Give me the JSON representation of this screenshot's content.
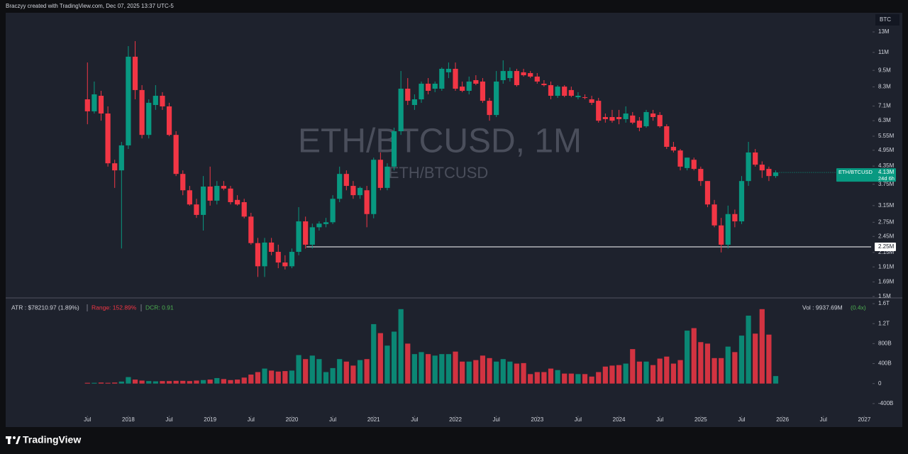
{
  "header": {
    "attribution": "Braczyy created with TradingView.com, Dec 07, 2025 13:37 UTC-5"
  },
  "chart_data": {
    "type": "candlestick",
    "watermark_title": "ETH/BTCUSD, 1M",
    "watermark_symbol": "ETH/BTCUSD",
    "currency": "BTC",
    "log_scale": true,
    "up_color": "#089981",
    "down_color": "#f23645",
    "x": [
      "2017-07",
      "2017-08",
      "2017-09",
      "2017-10",
      "2017-11",
      "2017-12",
      "2018-01",
      "2018-02",
      "2018-03",
      "2018-04",
      "2018-05",
      "2018-06",
      "2018-07",
      "2018-08",
      "2018-09",
      "2018-10",
      "2018-11",
      "2018-12",
      "2019-01",
      "2019-02",
      "2019-03",
      "2019-04",
      "2019-05",
      "2019-06",
      "2019-07",
      "2019-08",
      "2019-09",
      "2019-10",
      "2019-11",
      "2019-12",
      "2020-01",
      "2020-02",
      "2020-03",
      "2020-04",
      "2020-05",
      "2020-06",
      "2020-07",
      "2020-08",
      "2020-09",
      "2020-10",
      "2020-11",
      "2020-12",
      "2021-01",
      "2021-02",
      "2021-03",
      "2021-04",
      "2021-05",
      "2021-06",
      "2021-07",
      "2021-08",
      "2021-09",
      "2021-10",
      "2021-11",
      "2021-12",
      "2022-01",
      "2022-02",
      "2022-03",
      "2022-04",
      "2022-05",
      "2022-06",
      "2022-07",
      "2022-08",
      "2022-09",
      "2022-10",
      "2022-11",
      "2022-12",
      "2023-01",
      "2023-02",
      "2023-03",
      "2023-04",
      "2023-05",
      "2023-06",
      "2023-07",
      "2023-08",
      "2023-09",
      "2023-10",
      "2023-11",
      "2023-12",
      "2024-01",
      "2024-02",
      "2024-03",
      "2024-04",
      "2024-05",
      "2024-06",
      "2024-07",
      "2024-08",
      "2024-09",
      "2024-10",
      "2024-11",
      "2024-12",
      "2025-01",
      "2025-02",
      "2025-03",
      "2025-04",
      "2025-05",
      "2025-06",
      "2025-07",
      "2025-08",
      "2025-09",
      "2025-10",
      "2025-11",
      "2025-12"
    ],
    "open": [
      7.5,
      6.8,
      7.72,
      6.68,
      4.45,
      4.2,
      5.15,
      10.62,
      8.09,
      5.61,
      7.16,
      7.72,
      7.08,
      5.61,
      4.08,
      3.57,
      3.18,
      2.92,
      3.68,
      3.28,
      3.7,
      3.62,
      3.3,
      3.24,
      2.88,
      2.32,
      1.92,
      2.33,
      2.16,
      1.98,
      1.92,
      2.16,
      2.77,
      2.29,
      2.64,
      2.71,
      2.75,
      3.33,
      4.08,
      3.7,
      3.43,
      3.57,
      2.94,
      4.58,
      3.64,
      4.33,
      5.78,
      8.18,
      7.16,
      7.5,
      8.52,
      8.18,
      8.18,
      9.35,
      9.62,
      8.32,
      8.04,
      8.77,
      8.67,
      7.41,
      6.6,
      8.77,
      8.92,
      9.45,
      9.35,
      9.29,
      9.03,
      8.52,
      8.42,
      7.72,
      8.32,
      8.09,
      7.63,
      7.63,
      7.5,
      7.41,
      6.49,
      6.49,
      6.49,
      6.38,
      6.57,
      6.3,
      6.02,
      6.68,
      6.6,
      6.02,
      5.09,
      4.94,
      4.28,
      4.58,
      4.25,
      3.85,
      3.18,
      2.68,
      2.29,
      2.94,
      2.77,
      3.85,
      4.86,
      4.4,
      4.25,
      4.01
    ],
    "high": [
      10.13,
      8.67,
      8.04,
      7.08,
      4.58,
      5.3,
      11.58,
      12.06,
      8.42,
      7.5,
      8.42,
      7.95,
      7.29,
      5.78,
      4.2,
      3.7,
      3.33,
      4.01,
      4.33,
      3.85,
      3.85,
      3.7,
      3.43,
      3.33,
      2.97,
      2.42,
      2.42,
      2.42,
      2.29,
      2.1,
      2.22,
      3.11,
      2.88,
      2.72,
      2.77,
      2.85,
      3.43,
      4.33,
      4.2,
      3.85,
      3.68,
      3.7,
      4.66,
      4.86,
      4.45,
      5.95,
      9.45,
      8.92,
      7.81,
      8.67,
      8.92,
      8.67,
      9.73,
      10.13,
      10.13,
      8.67,
      9.03,
      9.13,
      8.92,
      7.59,
      9.45,
      10.31,
      9.73,
      9.62,
      9.62,
      9.45,
      9.29,
      8.77,
      8.67,
      8.42,
      8.42,
      8.32,
      7.95,
      7.81,
      7.72,
      7.59,
      6.68,
      6.88,
      6.88,
      7.08,
      6.76,
      6.49,
      6.88,
      6.88,
      6.76,
      6.12,
      5.3,
      5.0,
      4.66,
      4.66,
      4.33,
      3.85,
      3.3,
      2.85,
      3.15,
      3.05,
      4.01,
      5.3,
      5.0,
      4.52,
      4.33,
      4.2
    ],
    "low": [
      6.12,
      6.68,
      6.3,
      4.33,
      3.64,
      2.22,
      5.0,
      7.5,
      5.45,
      5.45,
      6.88,
      6.88,
      5.55,
      4.01,
      3.43,
      3.15,
      2.85,
      2.57,
      3.15,
      3.18,
      3.57,
      3.18,
      3.15,
      2.84,
      2.29,
      1.76,
      1.76,
      2.1,
      1.89,
      1.87,
      1.89,
      2.1,
      2.22,
      2.22,
      2.57,
      2.64,
      2.71,
      3.24,
      3.57,
      3.33,
      3.33,
      2.64,
      2.84,
      3.57,
      3.57,
      4.2,
      5.61,
      7.16,
      6.88,
      7.29,
      7.81,
      7.95,
      8.04,
      8.92,
      8.04,
      7.95,
      7.81,
      8.42,
      7.29,
      6.3,
      6.49,
      8.52,
      8.67,
      8.32,
      9.03,
      8.92,
      8.52,
      8.32,
      7.5,
      7.59,
      7.63,
      7.63,
      7.5,
      7.5,
      7.16,
      6.2,
      6.2,
      6.2,
      6.12,
      6.2,
      6.12,
      5.78,
      5.95,
      6.3,
      5.95,
      5.0,
      4.86,
      4.2,
      4.2,
      4.2,
      3.7,
      3.11,
      2.64,
      2.15,
      2.22,
      2.64,
      2.71,
      3.7,
      4.33,
      3.95,
      3.85,
      3.95
    ],
    "close": [
      6.8,
      7.81,
      6.68,
      4.45,
      4.2,
      5.15,
      10.62,
      8.09,
      5.61,
      7.29,
      7.72,
      7.08,
      5.61,
      4.08,
      3.57,
      3.18,
      2.92,
      3.68,
      3.28,
      3.7,
      3.62,
      3.24,
      3.18,
      2.88,
      2.32,
      1.92,
      2.33,
      2.16,
      1.98,
      1.92,
      2.16,
      2.77,
      2.29,
      2.64,
      2.72,
      2.75,
      3.33,
      4.08,
      3.7,
      3.43,
      3.64,
      2.94,
      4.58,
      3.64,
      4.33,
      5.78,
      8.18,
      7.41,
      7.5,
      8.52,
      8.04,
      8.52,
      9.62,
      9.62,
      8.18,
      8.04,
      8.67,
      8.52,
      7.41,
      6.6,
      8.67,
      9.45,
      9.45,
      8.42,
      9.13,
      9.03,
      8.67,
      8.42,
      7.72,
      8.32,
      7.72,
      7.72,
      7.72,
      7.59,
      7.29,
      6.3,
      6.38,
      6.3,
      6.38,
      6.68,
      6.2,
      5.95,
      6.76,
      6.49,
      6.02,
      5.09,
      4.94,
      4.33,
      4.66,
      4.25,
      3.85,
      3.18,
      2.68,
      2.29,
      2.94,
      2.77,
      3.85,
      4.86,
      4.4,
      4.2,
      4.01,
      4.13
    ],
    "xlim": [
      "2016-07",
      "2027-02"
    ],
    "xticks": [
      {
        "value": "2017-07",
        "label": "Jul"
      },
      {
        "value": "2018-01",
        "label": "2018"
      },
      {
        "value": "2018-07",
        "label": "Jul"
      },
      {
        "value": "2019-01",
        "label": "2019"
      },
      {
        "value": "2019-07",
        "label": "Jul"
      },
      {
        "value": "2020-01",
        "label": "2020"
      },
      {
        "value": "2020-07",
        "label": "Jul"
      },
      {
        "value": "2021-01",
        "label": "2021"
      },
      {
        "value": "2021-07",
        "label": "Jul"
      },
      {
        "value": "2022-01",
        "label": "2022"
      },
      {
        "value": "2022-07",
        "label": "Jul"
      },
      {
        "value": "2023-01",
        "label": "2023"
      },
      {
        "value": "2023-07",
        "label": "Jul"
      },
      {
        "value": "2024-01",
        "label": "2024"
      },
      {
        "value": "2024-07",
        "label": "Jul"
      },
      {
        "value": "2025-01",
        "label": "2025"
      },
      {
        "value": "2025-07",
        "label": "Jul"
      },
      {
        "value": "2026-01",
        "label": "2026"
      },
      {
        "value": "2026-07",
        "label": "Jul"
      },
      {
        "value": "2027-01",
        "label": "2027"
      }
    ],
    "ylim": [
      1.5,
      15.2
    ],
    "yticks": [
      {
        "value": 13,
        "label": "13M"
      },
      {
        "value": 11,
        "label": "11M"
      },
      {
        "value": 9.5,
        "label": "9.5M"
      },
      {
        "value": 8.3,
        "label": "8.3M"
      },
      {
        "value": 7.1,
        "label": "7.1M"
      },
      {
        "value": 6.3,
        "label": "6.3M"
      },
      {
        "value": 5.55,
        "label": "5.55M"
      },
      {
        "value": 4.95,
        "label": "4.95M"
      },
      {
        "value": 4.35,
        "label": "4.35M"
      },
      {
        "value": 3.75,
        "label": "3.75M"
      },
      {
        "value": 3.15,
        "label": "3.15M"
      },
      {
        "value": 2.75,
        "label": "2.75M"
      },
      {
        "value": 2.45,
        "label": "2.45M"
      },
      {
        "value": 2.15,
        "label": "2.15M"
      },
      {
        "value": 1.91,
        "label": "1.91M"
      },
      {
        "value": 1.69,
        "label": "1.69M"
      },
      {
        "value": 1.5,
        "label": "1.5M"
      }
    ],
    "last_price": {
      "name": "ETH/BTCUSD",
      "value": 4.13,
      "label": "4.13M",
      "countdown": "24d 6h"
    },
    "level": {
      "value": 2.25,
      "label": "2.25M"
    },
    "volume": [
      15,
      15,
      20,
      15,
      20,
      40,
      130,
      80,
      60,
      50,
      45,
      50,
      50,
      55,
      55,
      50,
      60,
      70,
      80,
      110,
      90,
      70,
      80,
      120,
      180,
      230,
      300,
      260,
      240,
      250,
      260,
      570,
      490,
      560,
      490,
      230,
      310,
      490,
      440,
      360,
      470,
      490,
      1190,
      1010,
      760,
      1040,
      1490,
      800,
      590,
      630,
      590,
      560,
      590,
      590,
      640,
      440,
      440,
      470,
      560,
      510,
      440,
      490,
      440,
      400,
      410,
      190,
      230,
      230,
      300,
      270,
      200,
      200,
      190,
      190,
      140,
      230,
      340,
      360,
      370,
      400,
      690,
      440,
      440,
      370,
      500,
      540,
      400,
      470,
      1060,
      1110,
      830,
      800,
      510,
      510,
      740,
      630,
      960,
      1360,
      1000,
      1490,
      980,
      150
    ],
    "volume_ylim": [
      -629,
      1686
    ],
    "volume_yticks": [
      {
        "value": 1600,
        "label": "1.6T"
      },
      {
        "value": 1200,
        "label": "1.2T"
      },
      {
        "value": 800,
        "label": "800B"
      },
      {
        "value": 400,
        "label": "400B"
      },
      0,
      {
        "value": -400,
        "label": "-400B"
      }
    ],
    "indicators": {
      "atr": "ATR : $78210.97 (1.89%)",
      "range": "Range: 152.89%",
      "dcr": "DCR: 0.91",
      "volume": "Vol : 9937.69M",
      "volume_ratio": "(0.4x)"
    }
  },
  "footer": {
    "brand": "TradingView"
  }
}
